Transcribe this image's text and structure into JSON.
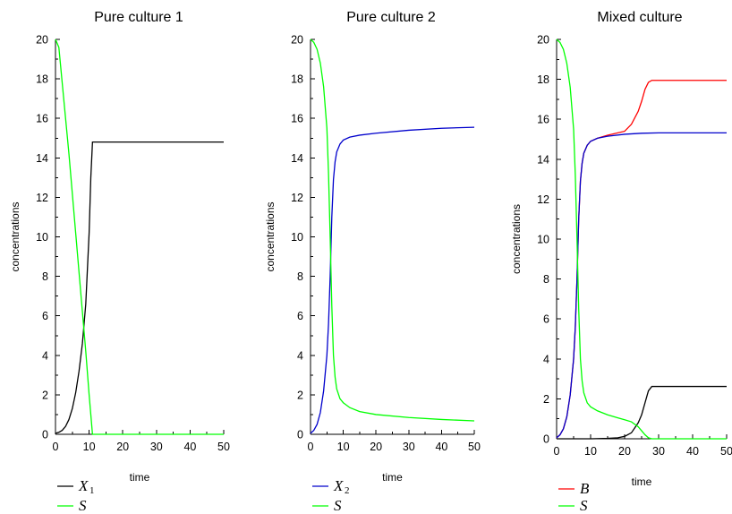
{
  "chart_data": [
    {
      "type": "line",
      "title": "Pure culture 1",
      "xlabel": "time",
      "ylabel": "concentrations",
      "xlim": [
        0,
        50
      ],
      "ylim": [
        0,
        20
      ],
      "xticks": [
        "0",
        "10",
        "20",
        "30",
        "40",
        "50"
      ],
      "yticks": [
        "0",
        "2",
        "4",
        "6",
        "8",
        "10",
        "12",
        "14",
        "16",
        "18",
        "20"
      ],
      "grid": false,
      "legend_position": "bottom-left",
      "series": [
        {
          "name": "X",
          "sub": "1",
          "color": "#000000",
          "x": [
            0,
            1,
            2,
            3,
            4,
            5,
            6,
            7,
            8,
            9,
            10,
            10.5,
            11,
            15,
            20,
            30,
            40,
            50
          ],
          "y": [
            0.05,
            0.1,
            0.2,
            0.4,
            0.75,
            1.3,
            2.1,
            3.2,
            4.6,
            6.6,
            10.2,
            13.0,
            14.8,
            14.8,
            14.8,
            14.8,
            14.8,
            14.8
          ]
        },
        {
          "name": "S",
          "sub": "",
          "color": "#00ff00",
          "x": [
            0,
            1,
            2,
            3,
            4,
            5,
            6,
            7,
            8,
            9,
            10,
            11,
            20,
            30,
            40,
            50
          ],
          "y": [
            20,
            19.6,
            17.8,
            16.0,
            14.2,
            12.2,
            10.2,
            8.2,
            6.2,
            4.2,
            2.0,
            0.0,
            0.0,
            0.0,
            0.0,
            0.0
          ]
        }
      ]
    },
    {
      "type": "line",
      "title": "Pure culture 2",
      "xlabel": "time",
      "ylabel": "concentrations",
      "xlim": [
        0,
        50
      ],
      "ylim": [
        0,
        20
      ],
      "xticks": [
        "0",
        "10",
        "20",
        "30",
        "40",
        "50"
      ],
      "yticks": [
        "0",
        "2",
        "4",
        "6",
        "8",
        "10",
        "12",
        "14",
        "16",
        "18",
        "20"
      ],
      "grid": false,
      "legend_position": "bottom-left",
      "series": [
        {
          "name": "X",
          "sub": "2",
          "color": "#0000cc",
          "x": [
            0,
            1,
            2,
            3,
            4,
            5,
            5.5,
            6,
            6.5,
            7,
            7.5,
            8,
            9,
            10,
            12,
            15,
            20,
            30,
            40,
            50
          ],
          "y": [
            0.05,
            0.2,
            0.5,
            1.1,
            2.2,
            4.0,
            5.6,
            8.0,
            11.0,
            12.9,
            13.8,
            14.3,
            14.7,
            14.9,
            15.05,
            15.15,
            15.25,
            15.4,
            15.5,
            15.55
          ]
        },
        {
          "name": "S",
          "sub": "",
          "color": "#00ff00",
          "x": [
            0,
            1,
            2,
            3,
            4,
            5,
            5.5,
            6,
            6.5,
            7,
            7.5,
            8,
            9,
            10,
            12,
            15,
            20,
            30,
            40,
            50
          ],
          "y": [
            20,
            19.85,
            19.5,
            18.8,
            17.6,
            15.5,
            13.2,
            10.0,
            6.5,
            4.0,
            2.9,
            2.3,
            1.8,
            1.6,
            1.35,
            1.15,
            1.0,
            0.85,
            0.75,
            0.68
          ]
        }
      ]
    },
    {
      "type": "line",
      "title": "Mixed culture",
      "xlabel": "time",
      "ylabel": "concentrations",
      "xlim": [
        0,
        50
      ],
      "ylim": [
        0,
        20
      ],
      "xticks": [
        "0",
        "10",
        "20",
        "30",
        "40",
        "50"
      ],
      "yticks": [
        "0",
        "2",
        "4",
        "6",
        "8",
        "10",
        "12",
        "14",
        "16",
        "18",
        "20"
      ],
      "grid": false,
      "legend_position": "bottom-left",
      "series": [
        {
          "name": "B",
          "sub": "",
          "color": "#ff0000",
          "x": [
            0,
            1,
            2,
            3,
            4,
            5,
            5.5,
            6,
            6.5,
            7,
            7.5,
            8,
            9,
            10,
            12,
            15,
            20,
            22,
            24,
            25,
            26,
            27,
            28,
            30,
            40,
            50
          ],
          "y": [
            0.05,
            0.2,
            0.5,
            1.1,
            2.2,
            4.0,
            5.6,
            8.0,
            11.0,
            12.9,
            13.8,
            14.3,
            14.7,
            14.9,
            15.05,
            15.2,
            15.4,
            15.75,
            16.4,
            16.9,
            17.5,
            17.85,
            17.95,
            17.95,
            17.95,
            17.95
          ]
        },
        {
          "name": "",
          "sub": "",
          "color": "#0000cc",
          "x": [
            0,
            1,
            2,
            3,
            4,
            5,
            5.5,
            6,
            6.5,
            7,
            7.5,
            8,
            9,
            10,
            12,
            15,
            20,
            25,
            30,
            40,
            50
          ],
          "y": [
            0.05,
            0.2,
            0.5,
            1.1,
            2.2,
            4.0,
            5.6,
            8.0,
            11.0,
            12.9,
            13.8,
            14.3,
            14.7,
            14.9,
            15.05,
            15.15,
            15.25,
            15.3,
            15.32,
            15.32,
            15.32
          ]
        },
        {
          "name": "",
          "sub": "",
          "color": "#000000",
          "x": [
            0,
            10,
            15,
            18,
            20,
            22,
            24,
            25,
            26,
            27,
            28,
            30,
            40,
            50
          ],
          "y": [
            0,
            0,
            0.02,
            0.05,
            0.12,
            0.3,
            0.8,
            1.2,
            1.8,
            2.4,
            2.62,
            2.62,
            2.62,
            2.62
          ]
        },
        {
          "name": "S",
          "sub": "",
          "color": "#00ff00",
          "x": [
            0,
            1,
            2,
            3,
            4,
            5,
            5.5,
            6,
            6.5,
            7,
            7.5,
            8,
            9,
            10,
            12,
            15,
            18,
            20,
            22,
            24,
            25,
            26,
            27,
            28,
            30,
            40,
            50
          ],
          "y": [
            20,
            19.85,
            19.5,
            18.8,
            17.6,
            15.5,
            13.2,
            10.0,
            6.5,
            4.0,
            2.9,
            2.3,
            1.8,
            1.6,
            1.4,
            1.2,
            1.05,
            0.95,
            0.85,
            0.6,
            0.4,
            0.2,
            0.05,
            0.0,
            0.0,
            0.0,
            0.0
          ]
        }
      ]
    }
  ]
}
